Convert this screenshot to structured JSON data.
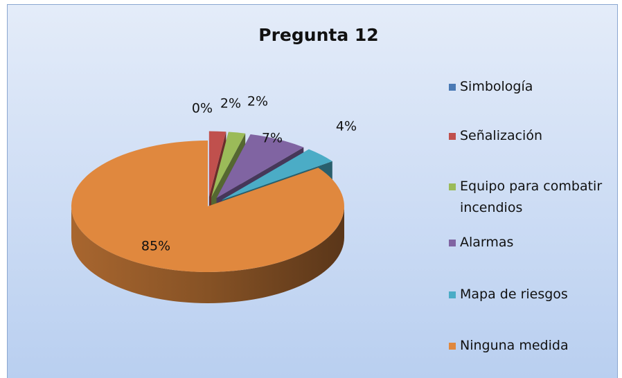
{
  "chart_data": {
    "type": "pie",
    "title": "Pregunta 12",
    "categories": [
      "Simbología",
      "Señalización",
      "Equipo para combatir incendios",
      "Alarmas",
      "Mapa de riesgos",
      "Ninguna medida"
    ],
    "values": [
      0,
      2,
      2,
      7,
      4,
      85
    ],
    "value_labels": [
      "0%",
      "2%",
      "2%",
      "7%",
      "4%",
      "85%"
    ],
    "colors": [
      "#4a7ab5",
      "#c0504d",
      "#9bbb59",
      "#8064a2",
      "#4bacc6",
      "#e0883e"
    ],
    "legend": "right"
  }
}
